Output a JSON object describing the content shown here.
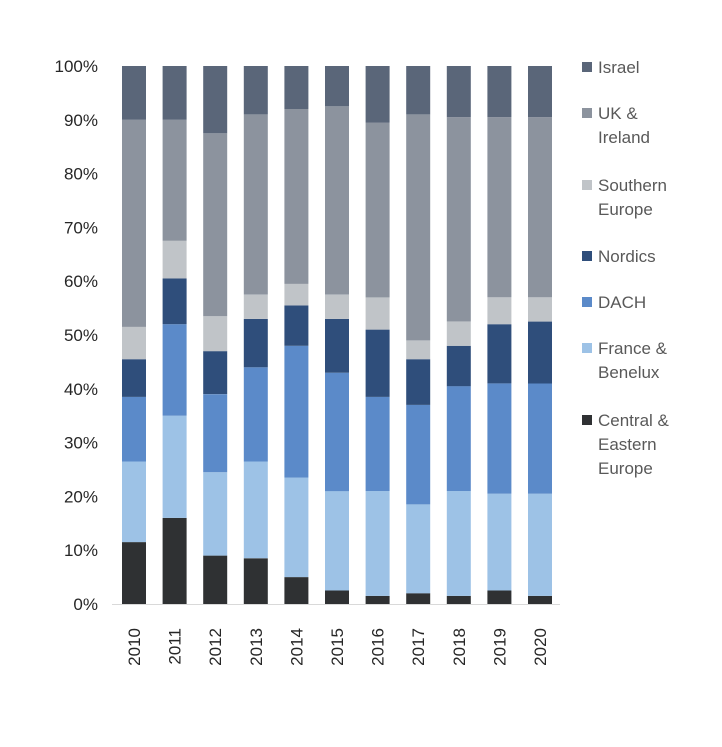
{
  "chart_data": {
    "type": "bar",
    "stacked": true,
    "categories": [
      "2010",
      "2011",
      "2012",
      "2013",
      "2014",
      "2015",
      "2016",
      "2017",
      "2018",
      "2019",
      "2020"
    ],
    "ylim": [
      0,
      100
    ],
    "y_ticks": [
      "0%",
      "10%",
      "20%",
      "30%",
      "40%",
      "50%",
      "60%",
      "70%",
      "80%",
      "90%",
      "100%"
    ],
    "grid": false,
    "legend_position": "right",
    "series": [
      {
        "name": "Central & Eastern Europe",
        "color": "#2f3133",
        "values": [
          11.5,
          16,
          9,
          8.5,
          5,
          2.5,
          1.5,
          2,
          1.5,
          2.5,
          1.5
        ]
      },
      {
        "name": "France & Benelux",
        "color": "#9dc2e6",
        "values": [
          15,
          19,
          15.5,
          18,
          18.5,
          18.5,
          19.5,
          16.5,
          19.5,
          18,
          19
        ]
      },
      {
        "name": "DACH",
        "color": "#5b8ac9",
        "values": [
          12,
          17,
          14.5,
          17.5,
          24.5,
          22,
          17.5,
          18.5,
          19.5,
          20.5,
          20.5
        ]
      },
      {
        "name": "Nordics",
        "color": "#2f4e7b",
        "values": [
          7,
          8.5,
          8,
          9,
          7.5,
          10,
          12.5,
          8.5,
          7.5,
          11,
          11.5
        ]
      },
      {
        "name": "Southern Europe",
        "color": "#c0c4c8",
        "values": [
          6,
          7,
          6.5,
          4.5,
          4,
          4.5,
          6,
          3.5,
          4.5,
          5,
          4.5
        ]
      },
      {
        "name": "UK & Ireland",
        "color": "#8c939e",
        "values": [
          38.5,
          22.5,
          34,
          33.5,
          32.5,
          35,
          32.5,
          42,
          38,
          33.5,
          33.5
        ]
      },
      {
        "name": "Israel",
        "color": "#5a6679",
        "values": [
          10,
          10,
          12.5,
          9,
          8,
          7.5,
          10.5,
          9,
          9.5,
          9.5,
          9.5
        ]
      }
    ]
  },
  "legend": [
    {
      "color": "#5a6679",
      "lines": [
        "Israel"
      ]
    },
    {
      "color": "#8c939e",
      "lines": [
        "UK &",
        "Ireland"
      ]
    },
    {
      "color": "#c0c4c8",
      "lines": [
        "Southern",
        "Europe"
      ]
    },
    {
      "color": "#2f4e7b",
      "lines": [
        "Nordics"
      ]
    },
    {
      "color": "#5b8ac9",
      "lines": [
        "DACH"
      ]
    },
    {
      "color": "#9dc2e6",
      "lines": [
        "France &",
        "Benelux"
      ]
    },
    {
      "color": "#2f3133",
      "lines": [
        "Central &",
        "Eastern",
        "Europe"
      ]
    }
  ]
}
